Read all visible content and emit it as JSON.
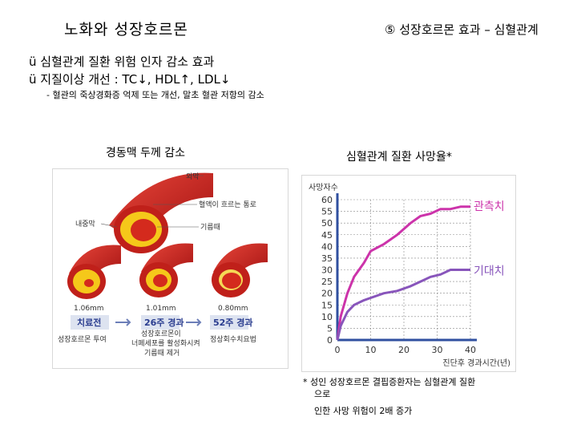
{
  "title": "노화와 성장호르몬",
  "subtitle": "⑤ 성장호르몬 효과 – 심혈관계",
  "bullets": [
    "ü 심혈관계 질환 위험 인자 감소 효과",
    "ü 지질이상 개선 : TC↓, HDL↑, LDL↓"
  ],
  "note": "- 혈관의 죽상경화증 억제 또는 개선, 말초 혈관 저항의 감소",
  "left_heading": "경동맥 두께 감소",
  "right_heading": "심혈관계 질환 사망율*",
  "artery_labels": {
    "outer": "외막",
    "lumen": "혈액이 흐르는 통로",
    "intima": "내중막",
    "fat": "기름때",
    "m1": "1.06mm",
    "m2": "1.01mm",
    "m3": "0.80mm",
    "s1": "치료전",
    "s2": "26주 경과",
    "s3": "52주 경과",
    "c1": "성장호르몬 투여",
    "c2a": "성장호르몬이",
    "c2b": "너페세포를 활성화시켜",
    "c2c": "기름때 제거",
    "c3": "정상회수치요법"
  },
  "chart_data": {
    "type": "line",
    "ylabel": "사망자수",
    "xlabel": "진단후 경과시간(년)",
    "xlim": [
      0,
      40
    ],
    "ylim": [
      0,
      60
    ],
    "xticks": [
      0,
      10,
      20,
      30,
      40
    ],
    "yticks": [
      0,
      5,
      10,
      15,
      20,
      25,
      30,
      35,
      40,
      45,
      50,
      55,
      60
    ],
    "series": [
      {
        "name": "관측치",
        "color": "#cc33aa",
        "x": [
          0,
          1,
          3,
          5,
          8,
          10,
          14,
          18,
          22,
          25,
          28,
          31,
          34,
          37,
          40
        ],
        "y": [
          0,
          10,
          20,
          27,
          33,
          38,
          41,
          45,
          50,
          53,
          54,
          56,
          56,
          57,
          57
        ]
      },
      {
        "name": "기대치",
        "color": "#8855bb",
        "x": [
          0,
          1,
          3,
          5,
          8,
          10,
          14,
          18,
          22,
          25,
          28,
          31,
          34,
          37,
          40
        ],
        "y": [
          0,
          6,
          12,
          15,
          17,
          18,
          20,
          21,
          23,
          25,
          27,
          28,
          30,
          30,
          30
        ]
      }
    ]
  },
  "footnote": {
    "line1": "* 성인 성장호르몬 결핍증환자는 심혈관계 질환",
    "line2": "으로",
    "line3": "인한 사망 위험이 2배 증가"
  }
}
